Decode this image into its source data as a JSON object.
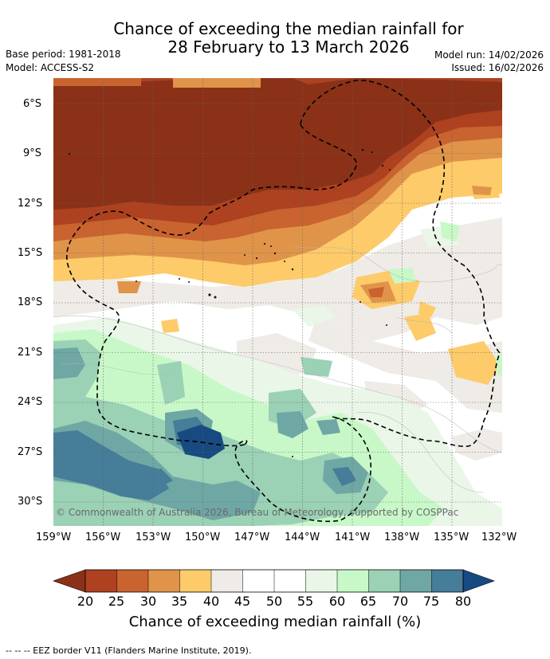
{
  "title": {
    "line1": "Chance of exceeding the median rainfall for",
    "line2": "28 February to 13 March 2026"
  },
  "meta": {
    "base_period": "Base period: 1981-2018",
    "model": "Model: ACCESS-S2",
    "model_run": "Model run: 14/02/2026",
    "issued": "Issued: 16/02/2026"
  },
  "map": {
    "lat_labels": [
      "6°S",
      "9°S",
      "12°S",
      "15°S",
      "18°S",
      "21°S",
      "24°S",
      "27°S",
      "30°S"
    ],
    "lon_labels": [
      "159°W",
      "156°W",
      "153°W",
      "150°W",
      "147°W",
      "144°W",
      "141°W",
      "138°W",
      "135°W",
      "132°W"
    ],
    "copyright": "© Commonwealth of Australia 2026, Bureau of Meteorology, supported by COSPPac"
  },
  "colorbar": {
    "title": "Chance of exceeding median rainfall (%)",
    "labels": [
      "20",
      "25",
      "30",
      "35",
      "40",
      "45",
      "50",
      "55",
      "60",
      "65",
      "70",
      "75",
      "80"
    ],
    "colors": {
      "below20": "#8a3118",
      "c20_25": "#ad4120",
      "c25_30": "#c9632f",
      "c30_35": "#e0944a",
      "c35_40": "#fdcb6a",
      "c40_45": "#efebe6",
      "c45_50": "#ffffff",
      "c50_55": "#ffffff",
      "c55_60": "#eaf6e8",
      "c60_65": "#c8f8c8",
      "c65_70": "#9bd1b5",
      "c70_75": "#6fa7a5",
      "c75_80": "#467d98",
      "above80": "#184a82"
    }
  },
  "footer": {
    "eez_note": "-- -- -- EEZ border V11 (Flanders Marine Institute, 2019)."
  }
}
